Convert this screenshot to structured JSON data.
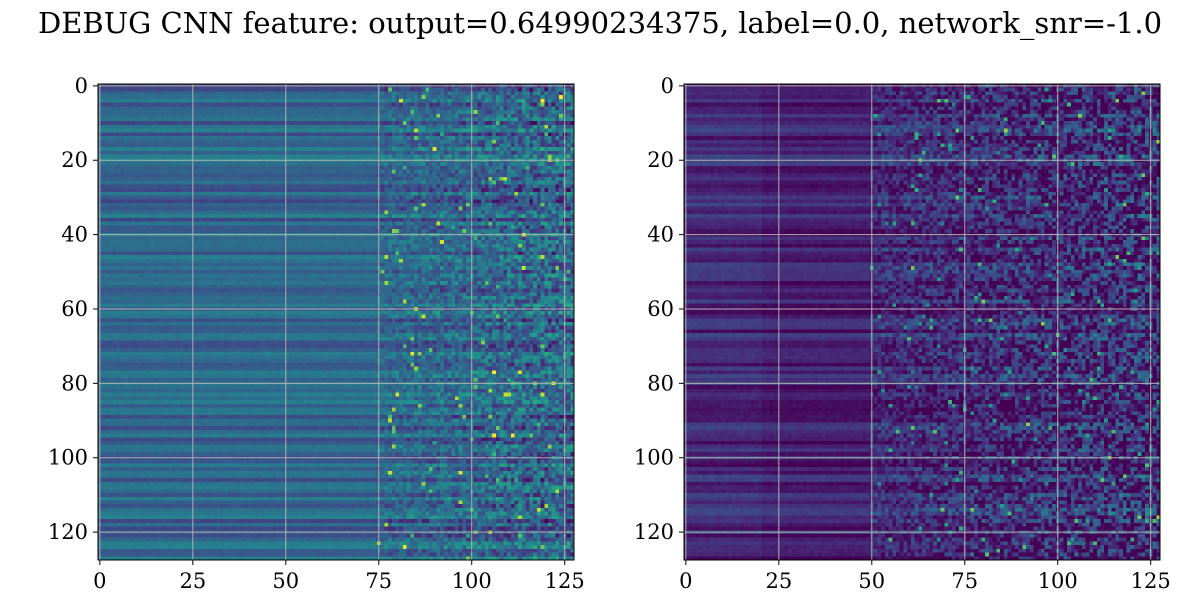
{
  "title": "DEBUG CNN feature: output=0.64990234375, label=0.0, network_snr=-1.0",
  "chart_data": [
    {
      "type": "heatmap",
      "colormap": "viridis",
      "rows": 128,
      "cols": 128,
      "xlim": [
        0,
        127
      ],
      "ylim": [
        127,
        0
      ],
      "xticks": [
        0,
        25,
        50,
        75,
        100,
        125
      ],
      "yticks": [
        0,
        20,
        40,
        60,
        80,
        100,
        120
      ],
      "grid": true,
      "value_range": [
        0,
        1
      ],
      "description_of_values": "left half (cols 0-75) smooth horizontal bands around 0.25-0.45; right part (cols 75-127) noisy with occasional bright points",
      "base_level": 0.33,
      "band_amplitude": 0.12,
      "noise_start_col": 75,
      "noise_amplitude": 0.45
    },
    {
      "type": "heatmap",
      "colormap": "viridis",
      "rows": 128,
      "cols": 128,
      "xlim": [
        0,
        127
      ],
      "ylim": [
        127,
        0
      ],
      "xticks": [
        0,
        25,
        50,
        75,
        100,
        125
      ],
      "yticks": [
        0,
        20,
        40,
        60,
        80,
        100,
        120
      ],
      "grid": true,
      "value_range": [
        0,
        1
      ],
      "description_of_values": "mostly dark (~0.05-0.2) with horizontal bands on the left; noisy speckles of higher values toward the right",
      "base_level": 0.12,
      "band_amplitude": 0.1,
      "noise_start_col": 50,
      "noise_amplitude": 0.55
    }
  ]
}
